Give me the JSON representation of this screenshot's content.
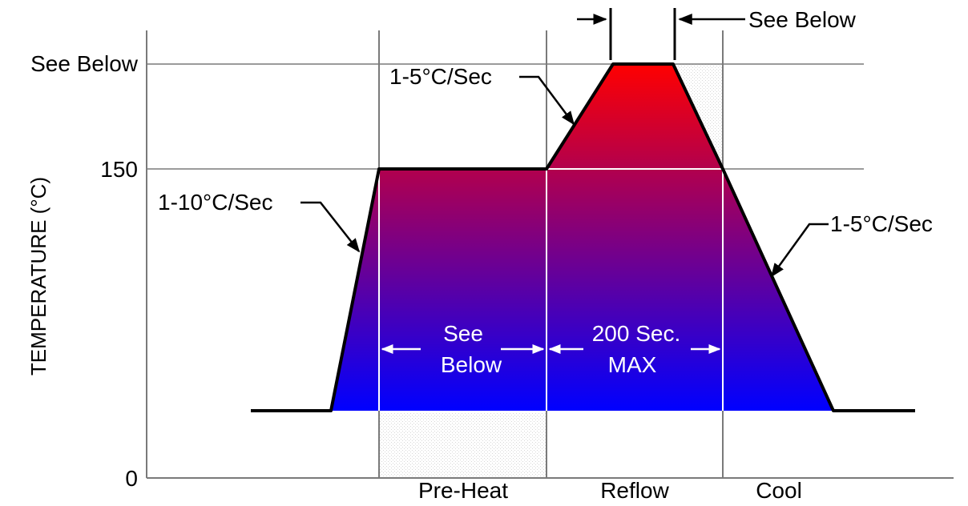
{
  "axes": {
    "y_label": "TEMPERATURE (°C)",
    "y_ticks": [
      "See Below",
      "150",
      "0"
    ]
  },
  "phases": [
    "Pre-Heat",
    "Reflow",
    "Cool"
  ],
  "annotations": {
    "top_dwell": "See Below",
    "ramp_up_rate": "1-10°C/Sec",
    "reflow_ramp_rate": "1-5°C/Sec",
    "cool_rate": "1-5°C/Sec",
    "preheat_time_line1": "See",
    "preheat_time_line2": "Below",
    "reflow_time_line1": "200 Sec.",
    "reflow_time_line2": "MAX"
  },
  "colors": {
    "gradient_top": "#ff0000",
    "gradient_bottom": "#0000ff",
    "outline": "#000000",
    "grid": "#7a7a7a"
  }
}
